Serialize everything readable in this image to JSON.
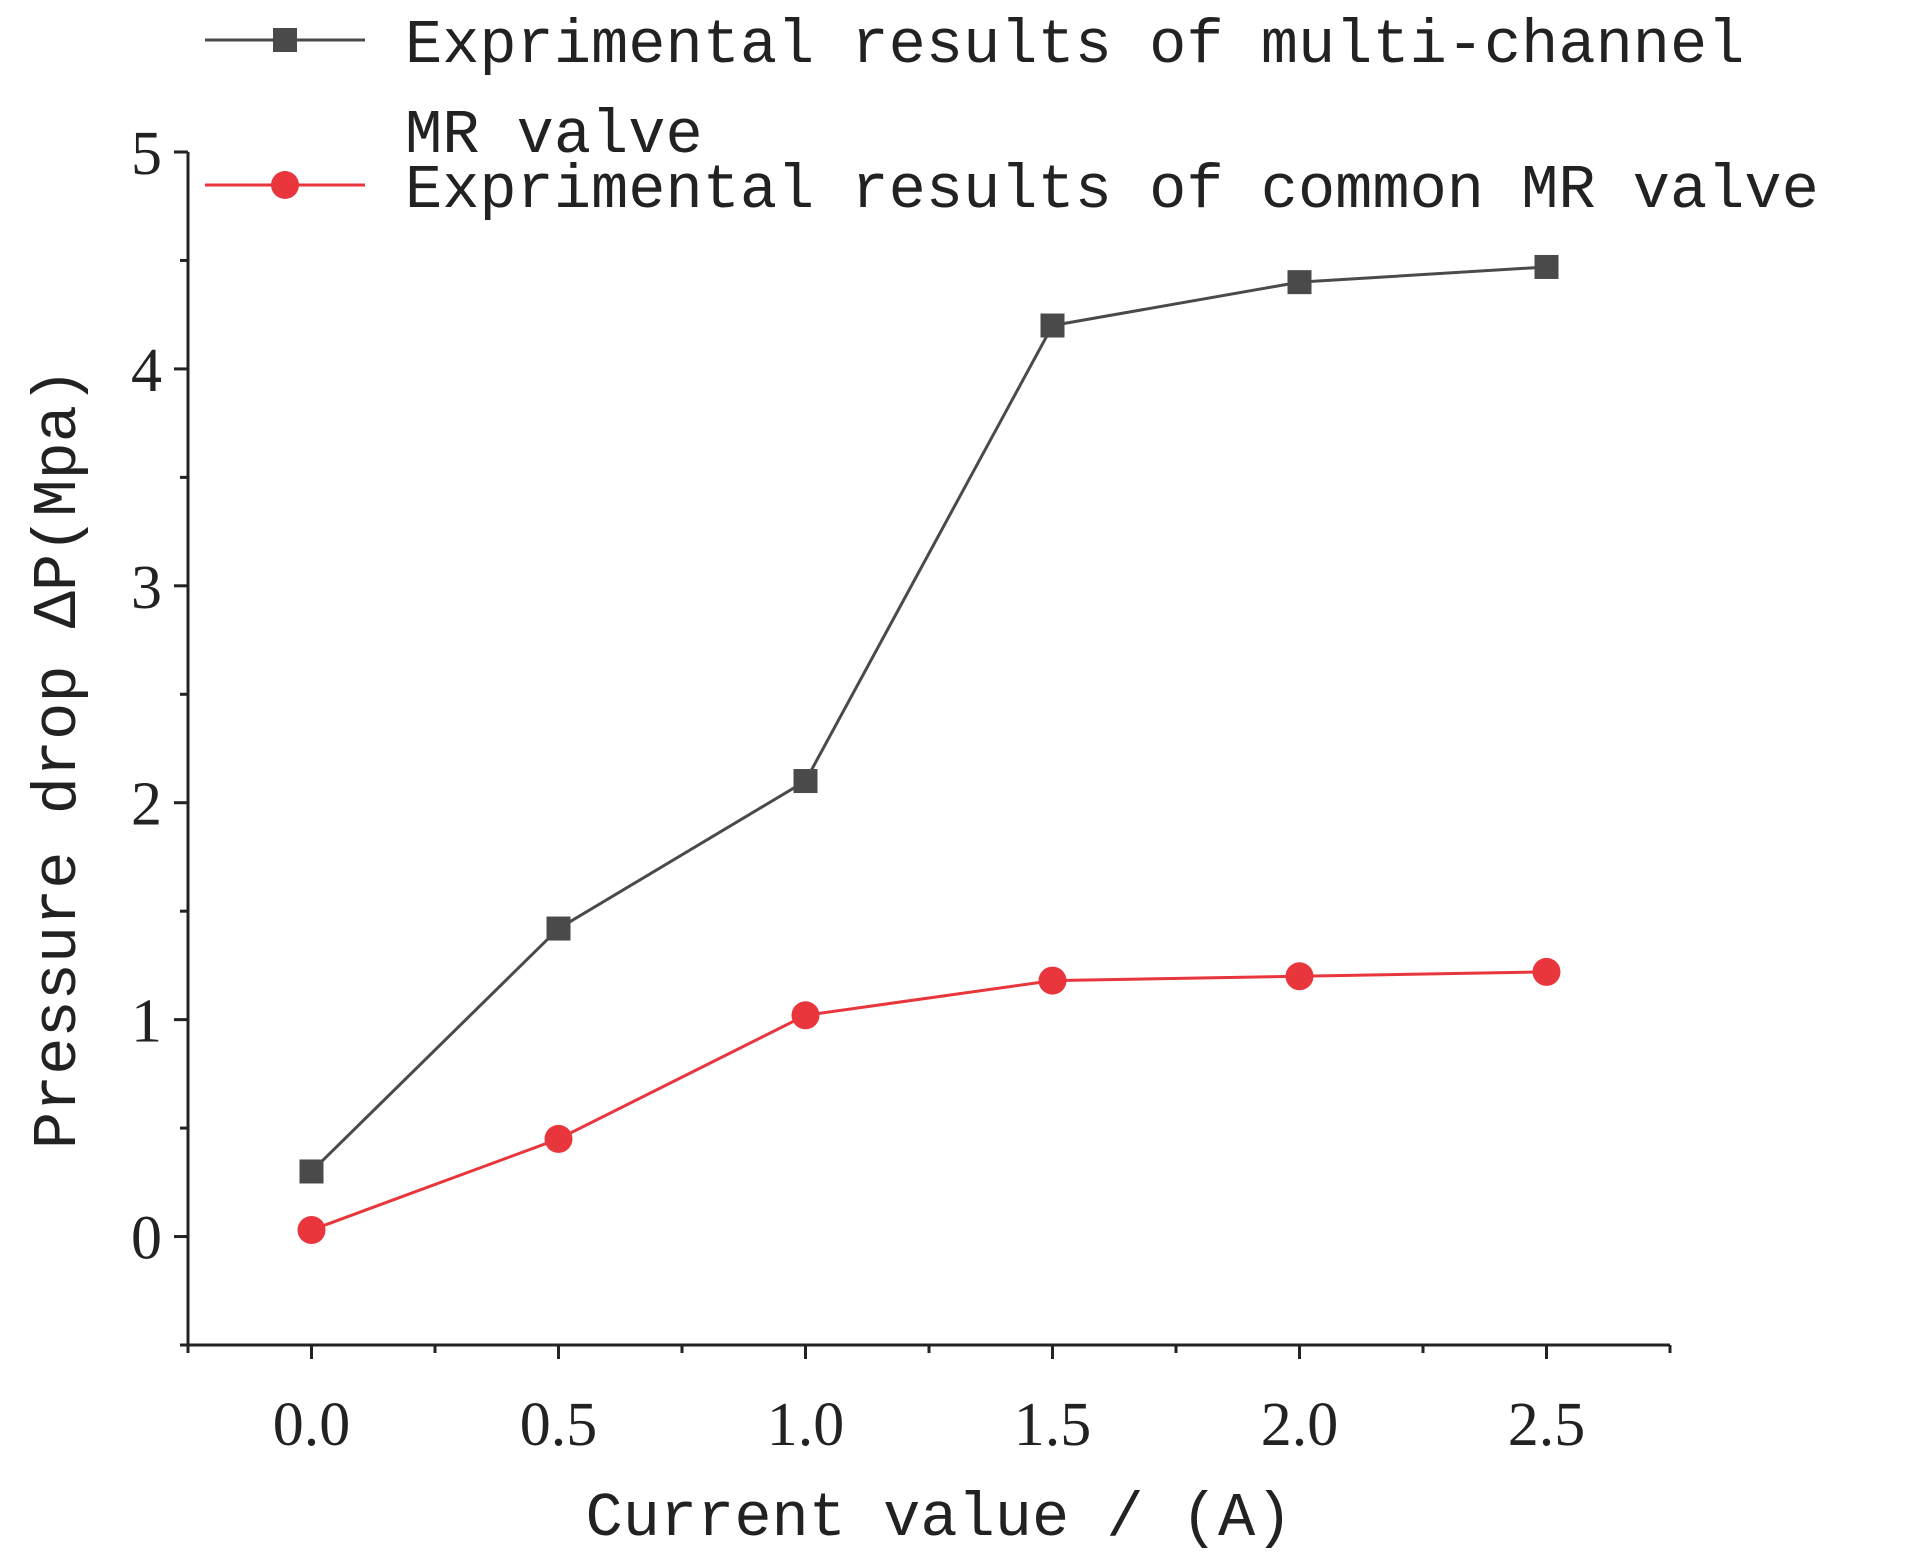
{
  "chart_data": {
    "type": "line",
    "title": "",
    "xlabel": "Current value / (A)",
    "ylabel": "Pressure drop ΔP(Mpa)",
    "xlim": [
      -0.25,
      2.75
    ],
    "ylim": [
      -0.5,
      5
    ],
    "x_ticks": [
      "0.0",
      "0.5",
      "1.0",
      "1.5",
      "2.0",
      "2.5"
    ],
    "y_ticks": [
      "0",
      "1",
      "2",
      "3",
      "4",
      "5"
    ],
    "x": [
      0.0,
      0.5,
      1.0,
      1.5,
      2.0,
      2.5
    ],
    "grid": false,
    "legend_position": "top",
    "series": [
      {
        "name_lines": [
          "Exprimental results of multi-channel",
          "MR valve"
        ],
        "marker": "square",
        "color": "#4a4a4a",
        "values": [
          0.3,
          1.42,
          2.1,
          4.2,
          4.4,
          4.47
        ]
      },
      {
        "name_lines": [
          "Exprimental results of common MR valve"
        ],
        "marker": "circle",
        "color": "#e8363c",
        "values": [
          0.03,
          0.45,
          1.02,
          1.18,
          1.2,
          1.22
        ]
      }
    ]
  }
}
